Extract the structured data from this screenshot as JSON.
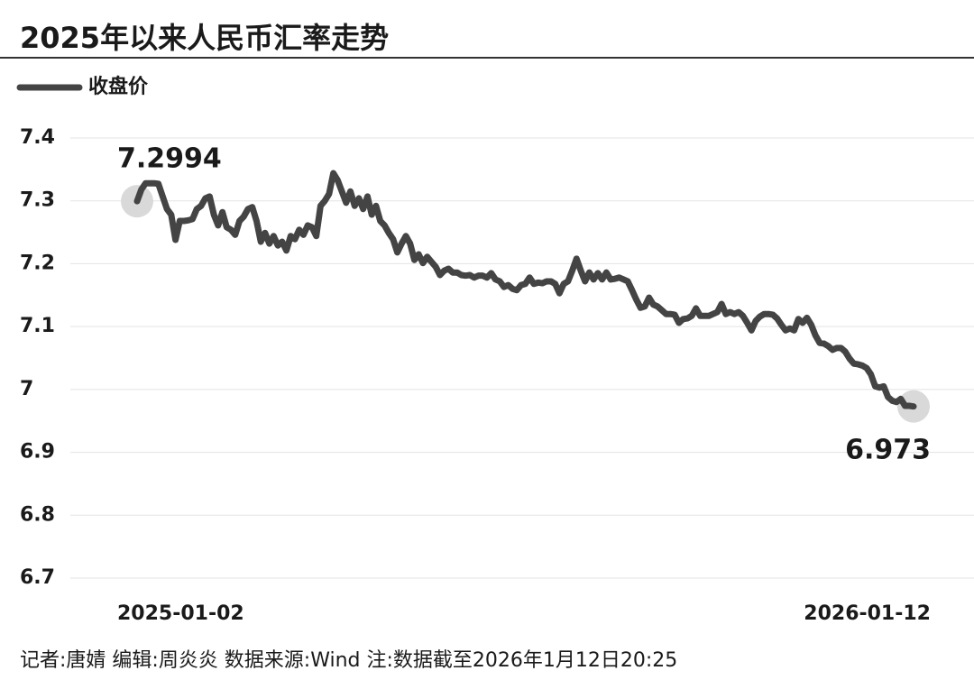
{
  "chart_data": {
    "type": "line",
    "title": "2025年以来人民币汇率走势",
    "footer": "记者:唐婧   编辑:周炎炎   数据来源:Wind   注:数据截至2026年1月12日20:25",
    "categories": [
      "2025-01-02",
      null,
      null,
      null,
      null,
      null,
      null,
      null,
      null,
      null,
      null,
      null,
      null,
      null,
      null,
      null,
      null,
      null,
      null,
      null,
      null,
      null,
      null,
      null,
      null,
      null,
      null,
      null,
      null,
      null,
      null,
      null,
      null,
      null,
      null,
      null,
      null,
      null,
      null,
      null,
      null,
      null,
      null,
      null,
      null,
      null,
      null,
      null,
      null,
      null,
      null,
      null,
      null,
      null,
      null,
      null,
      null,
      null,
      null,
      null,
      null,
      null,
      null,
      null,
      null,
      null,
      null,
      null,
      null,
      null,
      null,
      null,
      null,
      null,
      null,
      null,
      null,
      null,
      null,
      null,
      null,
      null,
      null,
      null,
      null,
      null,
      null,
      null,
      null,
      null,
      null,
      null,
      null,
      null,
      null,
      null,
      null,
      null,
      null,
      null,
      null,
      null,
      null,
      null,
      null,
      null,
      null,
      null,
      null,
      null,
      null,
      null,
      null,
      null,
      null,
      null,
      null,
      null,
      null,
      null,
      null,
      null,
      null,
      null,
      null,
      null,
      null,
      null,
      null,
      null,
      null,
      null,
      null,
      null,
      null,
      null,
      null,
      null,
      null,
      null,
      null,
      null,
      null,
      null,
      null,
      null,
      null,
      null,
      null,
      null,
      null,
      null,
      null,
      null,
      null,
      null,
      null,
      null,
      null,
      null,
      null,
      null,
      null,
      null,
      null,
      null,
      null,
      null,
      null,
      null,
      null,
      null,
      null,
      null,
      null,
      null,
      null,
      null,
      null,
      null,
      null,
      null,
      "2026-01-12"
    ],
    "series": [
      {
        "name": "收盘价",
        "color": "#444444",
        "values": [
          7.2994,
          7.318,
          7.328,
          7.328,
          7.328,
          7.327,
          7.307,
          7.287,
          7.278,
          7.238,
          7.268,
          7.268,
          7.269,
          7.271,
          7.287,
          7.292,
          7.304,
          7.307,
          7.278,
          7.261,
          7.282,
          7.258,
          7.254,
          7.246,
          7.268,
          7.275,
          7.287,
          7.29,
          7.268,
          7.235,
          7.249,
          7.232,
          7.244,
          7.229,
          7.235,
          7.221,
          7.244,
          7.239,
          7.254,
          7.246,
          7.261,
          7.258,
          7.244,
          7.292,
          7.3,
          7.311,
          7.344,
          7.333,
          7.315,
          7.297,
          7.315,
          7.292,
          7.304,
          7.287,
          7.307,
          7.278,
          7.292,
          7.268,
          7.261,
          7.249,
          7.239,
          7.218,
          7.232,
          7.244,
          7.232,
          7.206,
          7.215,
          7.201,
          7.211,
          7.203,
          7.195,
          7.182,
          7.189,
          7.192,
          7.186,
          7.186,
          7.182,
          7.181,
          7.182,
          7.178,
          7.181,
          7.181,
          7.178,
          7.185,
          7.175,
          7.172,
          7.163,
          7.166,
          7.16,
          7.158,
          7.166,
          7.168,
          7.178,
          7.168,
          7.17,
          7.169,
          7.172,
          7.172,
          7.168,
          7.153,
          7.168,
          7.172,
          7.189,
          7.208,
          7.189,
          7.172,
          7.186,
          7.175,
          7.185,
          7.175,
          7.186,
          7.175,
          7.176,
          7.178,
          7.175,
          7.172,
          7.158,
          7.143,
          7.13,
          7.132,
          7.146,
          7.135,
          7.132,
          7.126,
          7.12,
          7.12,
          7.119,
          7.106,
          7.112,
          7.113,
          7.117,
          7.129,
          7.117,
          7.117,
          7.117,
          7.12,
          7.123,
          7.136,
          7.12,
          7.123,
          7.12,
          7.123,
          7.117,
          7.106,
          7.094,
          7.109,
          7.116,
          7.12,
          7.12,
          7.119,
          7.113,
          7.103,
          7.094,
          7.097,
          7.094,
          7.112,
          7.106,
          7.114,
          7.103,
          7.086,
          7.074,
          7.073,
          7.069,
          7.063,
          7.066,
          7.066,
          7.06,
          7.049,
          7.041,
          7.04,
          7.038,
          7.034,
          7.024,
          7.005,
          7.003,
          7.005,
          6.988,
          6.982,
          6.98,
          6.985,
          6.974,
          6.974,
          6.973
        ]
      }
    ],
    "ylim": [
      6.7,
      7.4
    ],
    "yticks": [
      6.7,
      6.8,
      6.9,
      7,
      7.1,
      7.2,
      7.3,
      7.4
    ],
    "grid": true,
    "legend": "top-left"
  }
}
